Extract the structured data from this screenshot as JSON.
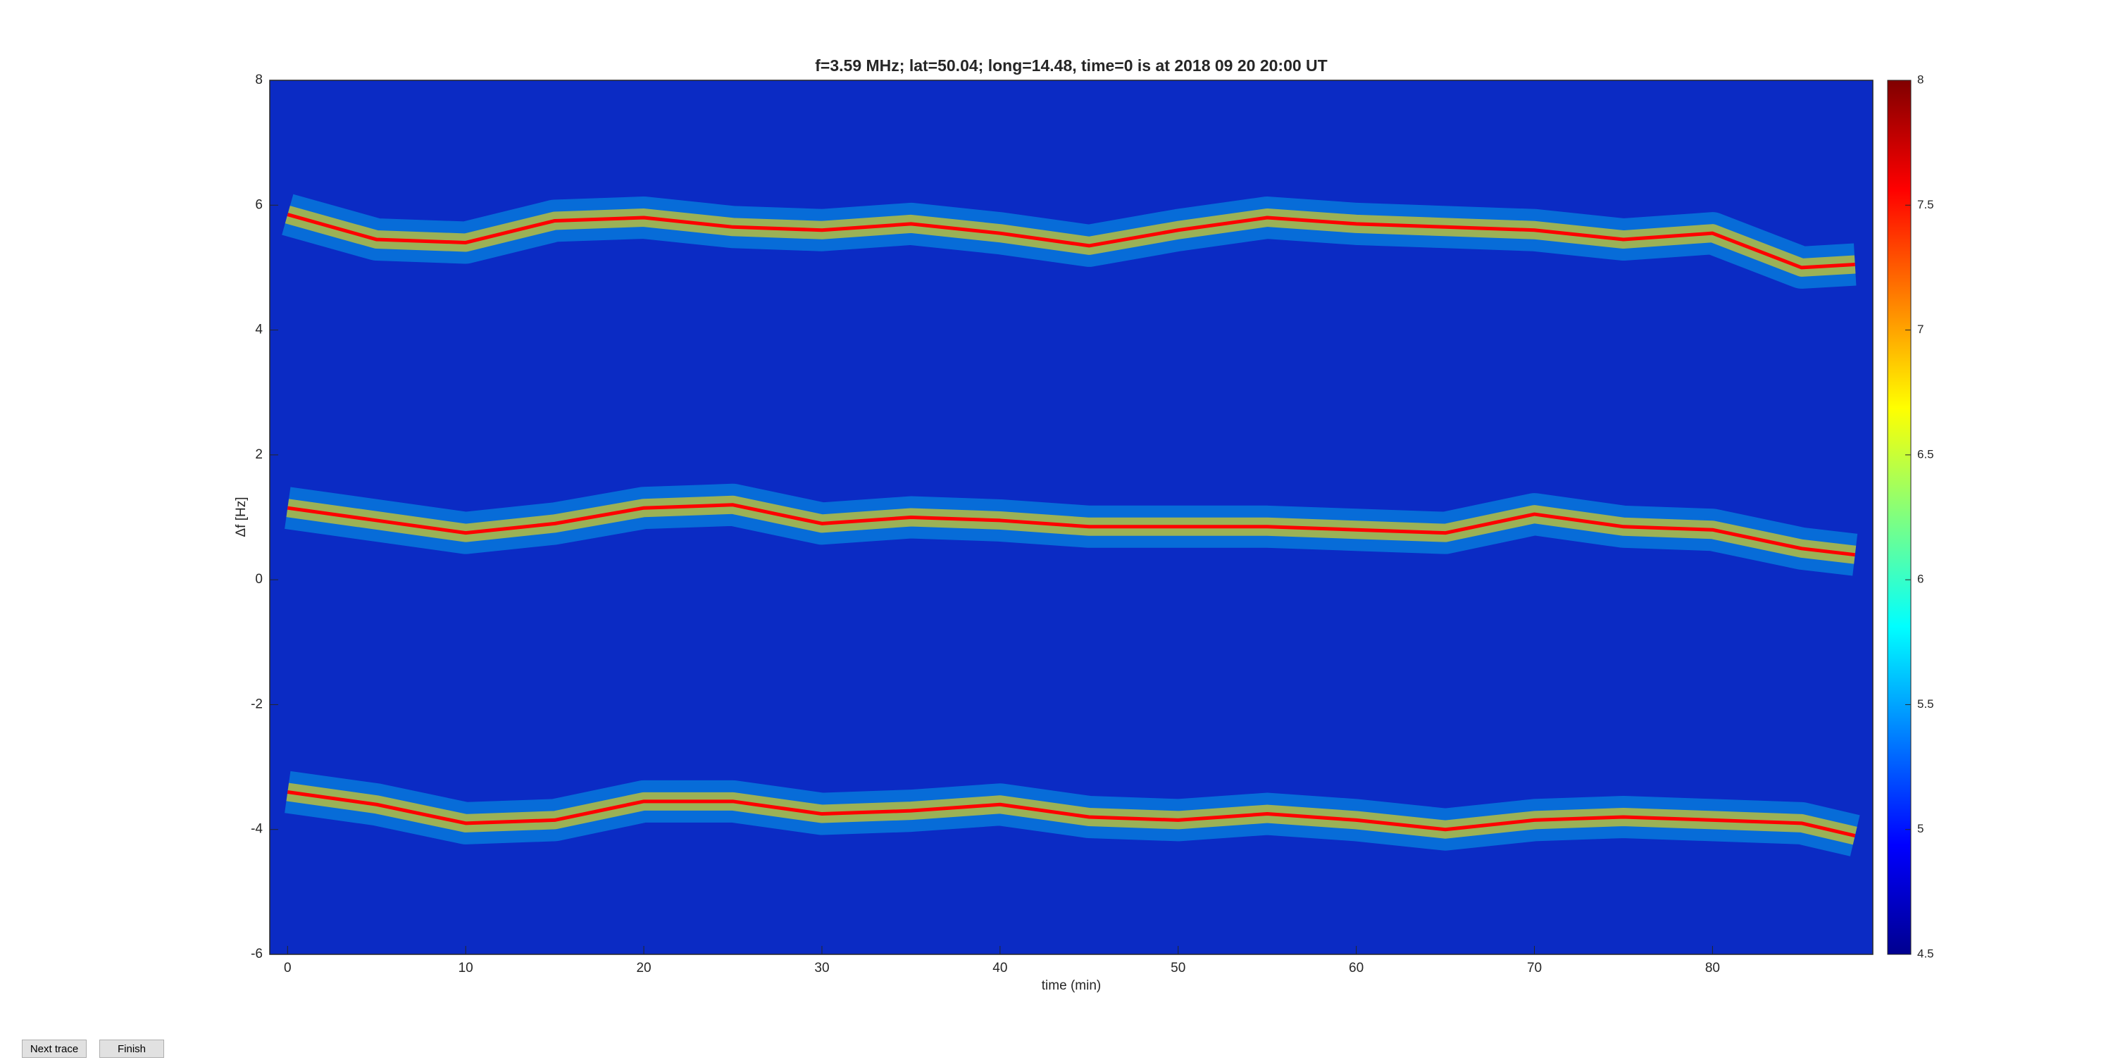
{
  "chart_data": {
    "type": "line",
    "title": "f=3.59 MHz;  lat=50.04; long=14.48, time=0 is at 2018 09 20 20:00 UT",
    "x_label": "time (min)",
    "y_label": "Δf [Hz]",
    "x": [
      0,
      5,
      10,
      15,
      20,
      25,
      30,
      35,
      40,
      45,
      50,
      55,
      60,
      65,
      70,
      75,
      80,
      85,
      88
    ],
    "series": [
      {
        "color": "#ff0000",
        "values": [
          5.85,
          5.45,
          5.4,
          5.75,
          5.8,
          5.65,
          5.6,
          5.7,
          5.55,
          5.35,
          5.6,
          5.8,
          5.7,
          5.65,
          5.6,
          5.45,
          5.55,
          5.0,
          5.05
        ]
      },
      {
        "color": "#ff0000",
        "values": [
          1.15,
          0.95,
          0.75,
          0.9,
          1.15,
          1.2,
          0.9,
          1.0,
          0.95,
          0.85,
          0.85,
          0.85,
          0.8,
          0.75,
          1.05,
          0.85,
          0.8,
          0.5,
          0.4
        ]
      },
      {
        "color": "#ff0000",
        "values": [
          -3.4,
          -3.6,
          -3.9,
          -3.85,
          -3.55,
          -3.55,
          -3.75,
          -3.7,
          -3.6,
          -3.8,
          -3.85,
          -3.75,
          -3.85,
          -4.0,
          -3.85,
          -3.8,
          -3.85,
          -3.9,
          -4.1
        ]
      }
    ],
    "xlim": [
      -1,
      89
    ],
    "xticks": [
      0,
      10,
      20,
      30,
      40,
      50,
      60,
      70,
      80
    ],
    "ylim": [
      -6,
      8
    ],
    "yticks": [
      -6,
      -4,
      -2,
      0,
      2,
      4,
      6,
      8
    ],
    "colorbar": {
      "lim": [
        4.5,
        8
      ],
      "ticks": [
        4.5,
        5,
        5.5,
        6,
        6.5,
        7,
        7.5,
        8
      ]
    }
  },
  "buttons": [
    {
      "label": "Next trace"
    },
    {
      "label": "Finish"
    }
  ]
}
